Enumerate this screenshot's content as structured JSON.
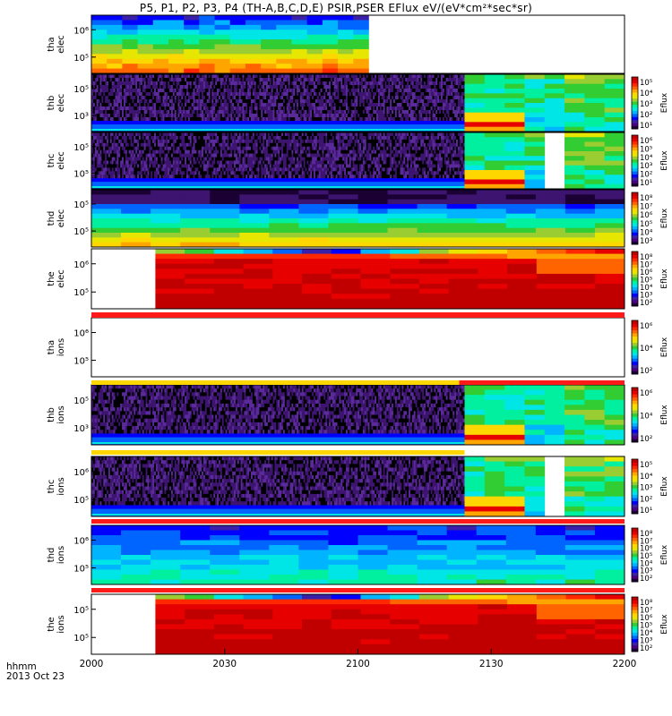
{
  "title": "P5, P1, P2, P3, P4 (TH-A,B,C,D,E) PSIR,PSER EFlux eV/(eV*cm²*sec*sr)",
  "footer": {
    "unit": "hhmm",
    "date": "2013 Oct 23"
  },
  "colorbar_label": "Eflux",
  "palette": [
    "#1a0033",
    "#4b0082",
    "#3a1fa8",
    "#0000ff",
    "#0064ff",
    "#00b4ff",
    "#00e6e6",
    "#00f0a0",
    "#32cd32",
    "#9acd32",
    "#e6e600",
    "#ffd700",
    "#ffa500",
    "#ff6400",
    "#ff2800",
    "#e60000",
    "#c00000"
  ],
  "chart_data": {
    "type": "heatmap",
    "title": "P5, P1, P2, P3, P4 (TH-A,B,C,D,E) PSIR,PSER EFlux eV/(eV*cm²*sec*sr)",
    "x_axis": {
      "ticks": [
        "2000",
        "2030",
        "2100",
        "2130",
        "2200"
      ],
      "unit_label": "hhmm",
      "date": "2013 Oct 23",
      "range": [
        "2000",
        "2200"
      ]
    },
    "panels": [
      {
        "name": "tha-elec",
        "ylabel": [
          "tha",
          "elec"
        ],
        "yticks": [
          "10⁶",
          "10⁵"
        ],
        "colorbar": false,
        "data_end_fraction": 0.52,
        "pattern": "tha_elec"
      },
      {
        "name": "thb-elec",
        "ylabel": [
          "thb",
          "elec"
        ],
        "yticks": [
          "10⁵",
          "10³"
        ],
        "colorbar": [
          "10⁵",
          "10⁴",
          "10³",
          "10²",
          "10¹"
        ],
        "pattern": "noise_then_blocks",
        "switch_fraction": 0.7
      },
      {
        "name": "thc-elec",
        "ylabel": [
          "thc",
          "elec"
        ],
        "yticks": [
          "10⁵",
          "10⁵"
        ],
        "colorbar": [
          "10⁶",
          "10⁵",
          "10⁴",
          "10³",
          "10²",
          "10¹"
        ],
        "pattern": "noise_then_blocks_gap",
        "switch_fraction": 0.7
      },
      {
        "name": "thd-elec",
        "ylabel": [
          "thd",
          "elec"
        ],
        "yticks": [
          "10⁵",
          "10⁵"
        ],
        "colorbar": [
          "10⁸",
          "10⁷",
          "10⁶",
          "10⁵",
          "10⁴",
          "10³"
        ],
        "pattern": "thd_elec"
      },
      {
        "name": "the-elec",
        "ylabel": [
          "the",
          "elec"
        ],
        "yticks": [
          "10⁶",
          "10⁵"
        ],
        "colorbar": [
          "10⁸",
          "10⁷",
          "10⁶",
          "10⁵",
          "10⁴",
          "10³",
          "10²"
        ],
        "pattern": "the_red",
        "data_start_fraction": 0.12
      },
      {
        "name": "tha-ions",
        "ylabel": [
          "tha",
          "ions"
        ],
        "yticks": [
          "10⁶",
          "10⁵"
        ],
        "colorbar": [
          "10⁶",
          "10⁴",
          "10²"
        ],
        "pattern": "empty"
      },
      {
        "name": "thb-ions",
        "ylabel": [
          "thb",
          "ions"
        ],
        "yticks": [
          "10⁵",
          "10³"
        ],
        "colorbar": [
          "10⁶",
          "10⁴",
          "10²"
        ],
        "pattern": "noise_then_blocks",
        "switch_fraction": 0.7
      },
      {
        "name": "thc-ions",
        "ylabel": [
          "thc",
          "ions"
        ],
        "yticks": [
          "10⁶",
          "10⁵"
        ],
        "colorbar": [
          "10⁵",
          "10⁴",
          "10³",
          "10²",
          "10¹"
        ],
        "pattern": "noise_then_blocks_gap",
        "switch_fraction": 0.7
      },
      {
        "name": "thd-ions",
        "ylabel": [
          "thd",
          "ions"
        ],
        "yticks": [
          "10⁶",
          "10⁵"
        ],
        "colorbar": [
          "10⁸",
          "10⁷",
          "10⁶",
          "10⁵",
          "10⁴",
          "10³",
          "10²"
        ],
        "pattern": "thd_ions"
      },
      {
        "name": "the-ions",
        "ylabel": [
          "the",
          "ions"
        ],
        "yticks": [
          "10⁵",
          "10⁵"
        ],
        "colorbar": [
          "10⁸",
          "10⁷",
          "10⁶",
          "10⁵",
          "10⁴",
          "10³",
          "10²"
        ],
        "pattern": "the_red",
        "data_start_fraction": 0.12
      }
    ]
  }
}
